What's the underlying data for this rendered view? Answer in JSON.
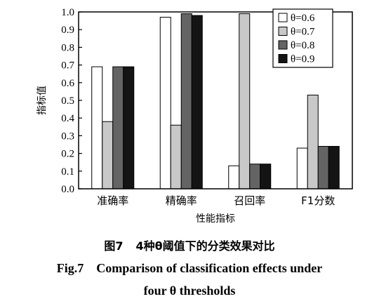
{
  "chart_data": {
    "type": "bar",
    "categories": [
      "准确率",
      "精确率",
      "召回率",
      "F1分数"
    ],
    "series": [
      {
        "name": "θ=0.6",
        "color": "#ffffff",
        "values": [
          0.69,
          0.97,
          0.13,
          0.23
        ]
      },
      {
        "name": "θ=0.7",
        "color": "#c8c8c8",
        "values": [
          0.38,
          0.36,
          0.99,
          0.53
        ]
      },
      {
        "name": "θ=0.8",
        "color": "#646464",
        "values": [
          0.69,
          0.99,
          0.14,
          0.24
        ]
      },
      {
        "name": "θ=0.9",
        "color": "#141414",
        "values": [
          0.69,
          0.98,
          0.14,
          0.24
        ]
      }
    ],
    "ylim": [
      0,
      1.0
    ],
    "yticks": [
      "0.0",
      "0.1",
      "0.2",
      "0.3",
      "0.4",
      "0.5",
      "0.6",
      "0.7",
      "0.8",
      "0.9",
      "1.0"
    ],
    "ylabel": "指标值",
    "xlabel": "性能指标",
    "legend_position": "top-right",
    "grid": false
  },
  "caption": {
    "zh_label": "图7",
    "zh_text": "4种θ阈值下的分类效果对比",
    "en_label": "Fig.7",
    "en_line1": "Comparison of classification effects under",
    "en_line2": "four θ thresholds"
  }
}
